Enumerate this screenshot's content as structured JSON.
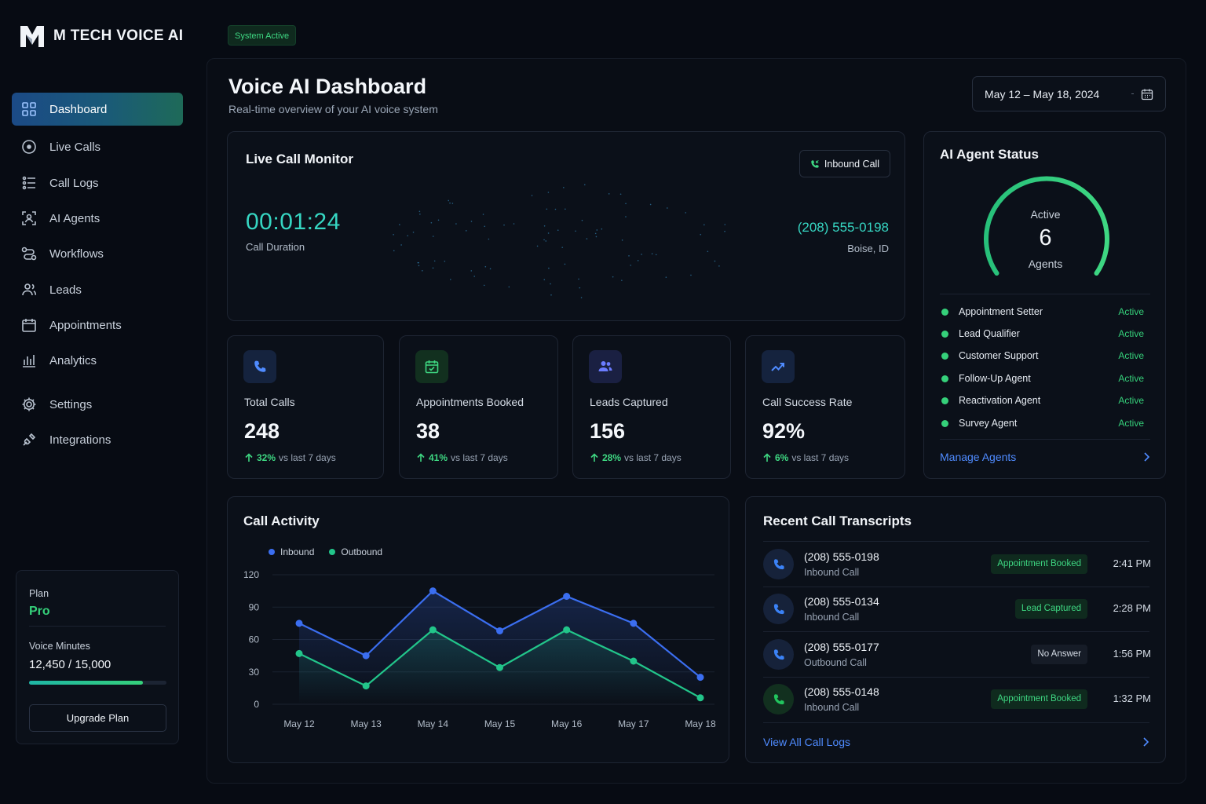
{
  "app": {
    "name": "M TECH VOICE AI"
  },
  "sidebar": {
    "items": [
      {
        "label": "Dashboard",
        "icon": "grid-icon",
        "active": true
      },
      {
        "label": "Live Calls",
        "icon": "live-icon"
      },
      {
        "label": "Call Logs",
        "icon": "list-icon"
      },
      {
        "label": "AI Agents",
        "icon": "bot-icon"
      },
      {
        "label": "Workflows",
        "icon": "workflow-icon"
      },
      {
        "label": "Leads",
        "icon": "users-icon"
      },
      {
        "label": "Appointments",
        "icon": "calendar-icon"
      },
      {
        "label": "Analytics",
        "icon": "bar-chart-icon"
      },
      {
        "label": "Settings",
        "icon": "gear-icon"
      },
      {
        "label": "Integrations",
        "icon": "plug-icon"
      }
    ]
  },
  "plan": {
    "label": "Plan",
    "name": "Pro",
    "minutes_label": "Voice Minutes",
    "minutes_value": "12,450 / 15,000",
    "minutes_fraction": 0.83,
    "upgrade_label": "Upgrade Plan"
  },
  "status_badge": "System Active",
  "header": {
    "title": "Voice AI Dashboard",
    "subtitle": "Real-time overview of your AI voice system",
    "date_range": "May 12 – May 18, 2024"
  },
  "live_call": {
    "title": "Live Call Monitor",
    "call_type": "Inbound Call",
    "duration": "00:01:24",
    "duration_label": "Call Duration",
    "phone": "(208) 555-0198",
    "location": "Boise, ID"
  },
  "stats": [
    {
      "label": "Total Calls",
      "value": "248",
      "delta": "32%",
      "delta_label": "vs last 7 days",
      "icon": "phone-icon",
      "color": "#3b82f6"
    },
    {
      "label": "Appointments Booked",
      "value": "38",
      "delta": "41%",
      "delta_label": "vs last 7 days",
      "icon": "calendar-check-icon",
      "color": "#22c55e"
    },
    {
      "label": "Leads Captured",
      "value": "156",
      "delta": "28%",
      "delta_label": "vs last 7 days",
      "icon": "users-icon",
      "color": "#6b7cff"
    },
    {
      "label": "Call Success Rate",
      "value": "92%",
      "delta": "6%",
      "delta_label": "vs last 7 days",
      "icon": "trending-up-icon",
      "color": "#3b82f6"
    }
  ],
  "agent_status": {
    "title": "AI Agent Status",
    "gauge_top": "Active",
    "gauge_value": "6",
    "gauge_bottom": "Agents",
    "agents": [
      {
        "name": "Appointment Setter",
        "status": "Active"
      },
      {
        "name": "Lead Qualifier",
        "status": "Active"
      },
      {
        "name": "Customer Support",
        "status": "Active"
      },
      {
        "name": "Follow-Up Agent",
        "status": "Active"
      },
      {
        "name": "Reactivation Agent",
        "status": "Active"
      },
      {
        "name": "Survey Agent",
        "status": "Active"
      }
    ],
    "manage_label": "Manage Agents"
  },
  "call_activity": {
    "title": "Call Activity"
  },
  "chart_data": {
    "type": "line",
    "title": "Call Activity",
    "categories": [
      "May 12",
      "May 13",
      "May 14",
      "May 15",
      "May 16",
      "May 17",
      "May 18"
    ],
    "series": [
      {
        "name": "Inbound",
        "color": "#3b6ef0",
        "values": [
          75,
          45,
          105,
          68,
          100,
          75,
          25
        ]
      },
      {
        "name": "Outbound",
        "color": "#22c58a",
        "values": [
          47,
          17,
          69,
          34,
          69,
          40,
          6
        ]
      }
    ],
    "yticks": [
      0,
      30,
      60,
      90,
      120
    ],
    "ylim": [
      0,
      120
    ],
    "grid": true,
    "legend": "top-left"
  },
  "transcripts": {
    "title": "Recent Call Transcripts",
    "rows": [
      {
        "phone": "(208) 555-0198",
        "type": "Inbound Call",
        "tag": "Appointment Booked",
        "tag_kind": "green",
        "time": "2:41 PM",
        "icon_color": "#3b82f6"
      },
      {
        "phone": "(208) 555-0134",
        "type": "Inbound Call",
        "tag": "Lead Captured",
        "tag_kind": "green",
        "time": "2:28 PM",
        "icon_color": "#3b82f6"
      },
      {
        "phone": "(208) 555-0177",
        "type": "Outbound Call",
        "tag": "No Answer",
        "tag_kind": "gray",
        "time": "1:56 PM",
        "icon_color": "#3b82f6"
      },
      {
        "phone": "(208) 555-0148",
        "type": "Inbound Call",
        "tag": "Appointment Booked",
        "tag_kind": "green",
        "time": "1:32 PM",
        "icon_color": "#22c55e"
      }
    ],
    "view_all_label": "View All Call Logs"
  }
}
